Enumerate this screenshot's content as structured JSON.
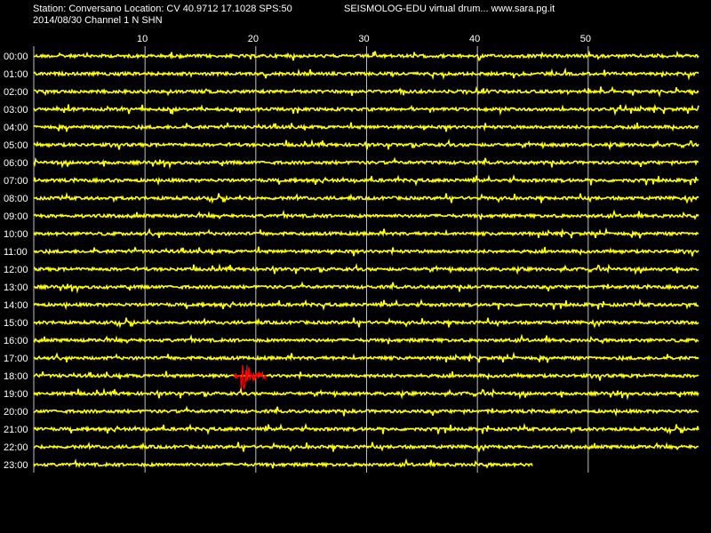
{
  "header": {
    "station_line": "Station: Conversano Location: CV 40.9712 17.1028 SPS:50",
    "date_line": "2014/08/30  Channel 1 N SHN",
    "product_line": "SEISMOLOG-EDU virtual drum... www.sara.pg.it"
  },
  "colors": {
    "background": "#000000",
    "trace": "#ffff00",
    "event": "#ff0000",
    "grid": "#c0c0c0",
    "text": "#ffffff"
  },
  "chart_data": {
    "type": "line",
    "x_unit": "minutes",
    "xlim": [
      0,
      60
    ],
    "x_ticks": [
      10,
      20,
      30,
      40,
      50
    ],
    "rows": [
      {
        "label": "00:00",
        "end_min": 60
      },
      {
        "label": "01:00",
        "end_min": 60
      },
      {
        "label": "02:00",
        "end_min": 60
      },
      {
        "label": "03:00",
        "end_min": 60
      },
      {
        "label": "04:00",
        "end_min": 60
      },
      {
        "label": "05:00",
        "end_min": 60
      },
      {
        "label": "06:00",
        "end_min": 60
      },
      {
        "label": "07:00",
        "end_min": 60
      },
      {
        "label": "08:00",
        "end_min": 60
      },
      {
        "label": "09:00",
        "end_min": 60
      },
      {
        "label": "10:00",
        "end_min": 60
      },
      {
        "label": "11:00",
        "end_min": 60
      },
      {
        "label": "12:00",
        "end_min": 60
      },
      {
        "label": "13:00",
        "end_min": 60
      },
      {
        "label": "14:00",
        "end_min": 60
      },
      {
        "label": "15:00",
        "end_min": 60
      },
      {
        "label": "16:00",
        "end_min": 60
      },
      {
        "label": "17:00",
        "end_min": 60
      },
      {
        "label": "18:00",
        "end_min": 60
      },
      {
        "label": "19:00",
        "end_min": 60
      },
      {
        "label": "20:00",
        "end_min": 60
      },
      {
        "label": "21:00",
        "end_min": 60
      },
      {
        "label": "22:00",
        "end_min": 60
      },
      {
        "label": "23:00",
        "end_min": 45
      }
    ],
    "event": {
      "row": "18:00",
      "start_min": 18.0,
      "end_min": 21.0
    }
  }
}
